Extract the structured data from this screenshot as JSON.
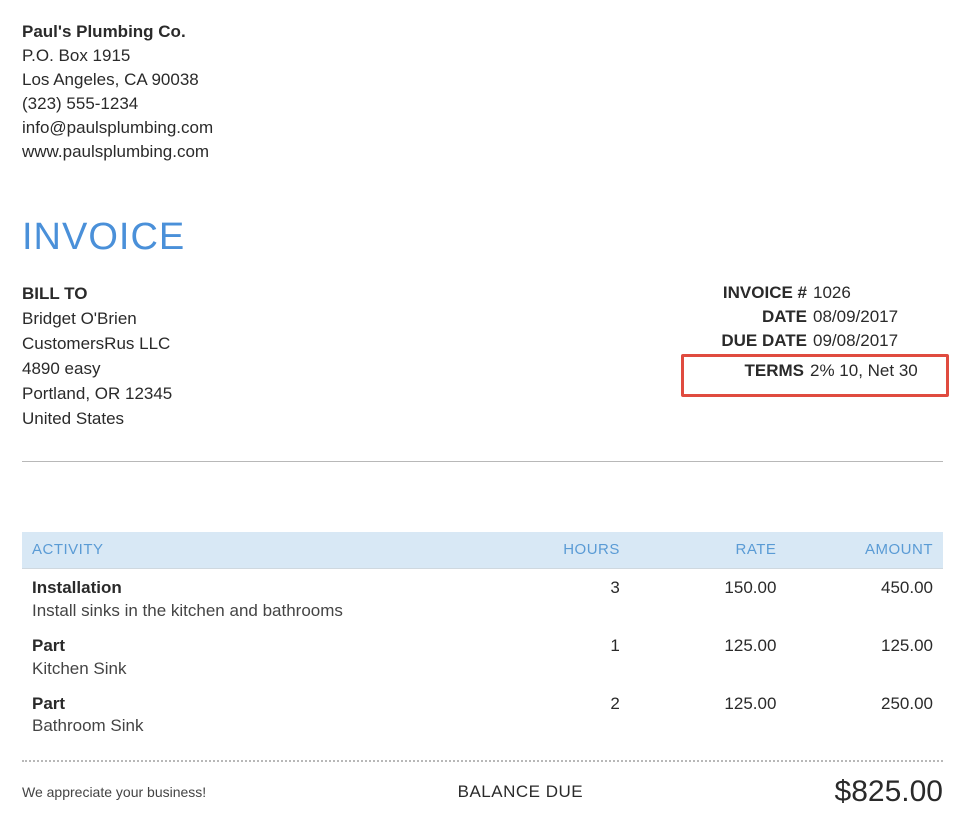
{
  "company": {
    "name": "Paul's Plumbing Co.",
    "line1": "P.O. Box 1915",
    "line2": "Los Angeles, CA  90038",
    "phone": "(323) 555-1234",
    "email": "info@paulsplumbing.com",
    "web": "www.paulsplumbing.com"
  },
  "title": "INVOICE",
  "billto": {
    "label": "BILL TO",
    "name": "Bridget O'Brien",
    "company": "CustomersRus LLC",
    "street": "4890 easy",
    "citystate": "Portland, OR  12345",
    "country": "United States"
  },
  "info": {
    "invoice_label": "INVOICE #",
    "invoice_no": "1026",
    "date_label": "DATE",
    "date": "08/09/2017",
    "due_label": "DUE DATE",
    "due": "09/08/2017",
    "terms_label": "TERMS",
    "terms": "2% 10, Net 30"
  },
  "columns": {
    "activity": "ACTIVITY",
    "hours": "HOURS",
    "rate": "RATE",
    "amount": "AMOUNT"
  },
  "items": [
    {
      "title": "Installation",
      "desc": "Install sinks in the kitchen and bathrooms",
      "hours": "3",
      "rate": "150.00",
      "amount": "450.00"
    },
    {
      "title": "Part",
      "desc": "Kitchen Sink",
      "hours": "1",
      "rate": "125.00",
      "amount": "125.00"
    },
    {
      "title": "Part",
      "desc": "Bathroom Sink",
      "hours": "2",
      "rate": "125.00",
      "amount": "250.00"
    }
  ],
  "footer": {
    "thanks": "We appreciate your business!",
    "balance_label": "BALANCE DUE",
    "balance": "$825.00"
  },
  "colors": {
    "accent": "#4a90d9",
    "header_bg": "#d8e8f5",
    "highlight_border": "#e04b3f"
  }
}
